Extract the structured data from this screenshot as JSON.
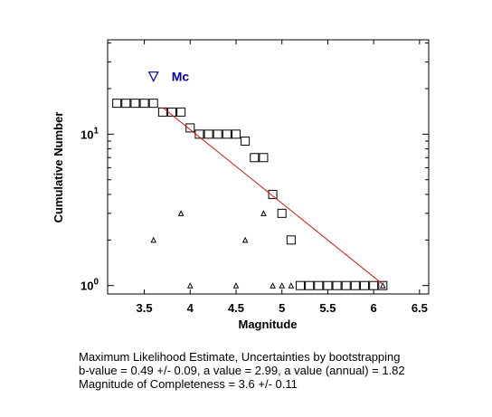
{
  "chart_data": {
    "type": "scatter",
    "xlabel": "Magnitude",
    "ylabel": "Cumulative Number",
    "xlim": [
      3.1,
      6.6
    ],
    "ylim": [
      0.88,
      42
    ],
    "yscale": "log",
    "xticks": [
      "3.5",
      "4",
      "4.5",
      "5",
      "5.5",
      "6",
      "6.5"
    ],
    "yticks": [
      {
        "base": "10",
        "exp": "0"
      },
      {
        "base": "10",
        "exp": "1"
      }
    ],
    "grid": false,
    "series": [
      {
        "marker": "square",
        "color": "#000000",
        "points": [
          {
            "x": 3.2,
            "y": 16
          },
          {
            "x": 3.3,
            "y": 16
          },
          {
            "x": 3.4,
            "y": 16
          },
          {
            "x": 3.5,
            "y": 16
          },
          {
            "x": 3.6,
            "y": 16
          },
          {
            "x": 3.7,
            "y": 14
          },
          {
            "x": 3.8,
            "y": 14
          },
          {
            "x": 3.9,
            "y": 14
          },
          {
            "x": 4.0,
            "y": 11
          },
          {
            "x": 4.1,
            "y": 10
          },
          {
            "x": 4.2,
            "y": 10
          },
          {
            "x": 4.3,
            "y": 10
          },
          {
            "x": 4.4,
            "y": 10
          },
          {
            "x": 4.5,
            "y": 10
          },
          {
            "x": 4.6,
            "y": 9
          },
          {
            "x": 4.7,
            "y": 7
          },
          {
            "x": 4.8,
            "y": 7
          },
          {
            "x": 4.9,
            "y": 4
          },
          {
            "x": 5.0,
            "y": 3
          },
          {
            "x": 5.1,
            "y": 2
          },
          {
            "x": 5.2,
            "y": 1
          },
          {
            "x": 5.3,
            "y": 1
          },
          {
            "x": 5.4,
            "y": 1
          },
          {
            "x": 5.5,
            "y": 1
          },
          {
            "x": 5.6,
            "y": 1
          },
          {
            "x": 5.7,
            "y": 1
          },
          {
            "x": 5.8,
            "y": 1
          },
          {
            "x": 5.9,
            "y": 1
          },
          {
            "x": 6.0,
            "y": 1
          },
          {
            "x": 6.1,
            "y": 1
          }
        ]
      },
      {
        "marker": "triangle",
        "color": "#000000",
        "points": [
          {
            "x": 3.6,
            "y": 2
          },
          {
            "x": 3.9,
            "y": 3
          },
          {
            "x": 4.0,
            "y": 1
          },
          {
            "x": 4.5,
            "y": 1
          },
          {
            "x": 4.6,
            "y": 2
          },
          {
            "x": 4.8,
            "y": 3
          },
          {
            "x": 4.9,
            "y": 1
          },
          {
            "x": 5.0,
            "y": 1
          },
          {
            "x": 5.1,
            "y": 1
          },
          {
            "x": 6.1,
            "y": 1
          }
        ]
      },
      {
        "marker": "line",
        "color": "#e01010",
        "points": [
          {
            "x": 3.7,
            "y": 15
          },
          {
            "x": 6.1,
            "y": 1.02
          }
        ]
      }
    ],
    "mc_marker": {
      "x": 3.6,
      "y": 24,
      "label": "Mc",
      "color": "#0000a0"
    }
  },
  "caption": {
    "line1": "Maximum Likelihood Estimate, Uncertainties by bootstrapping",
    "line2": "b-value = 0.49 +/- 0.09,  a value = 2.99,  a value (annual) = 1.82",
    "line3": "Magnitude of Completeness = 3.6 +/- 0.11"
  }
}
